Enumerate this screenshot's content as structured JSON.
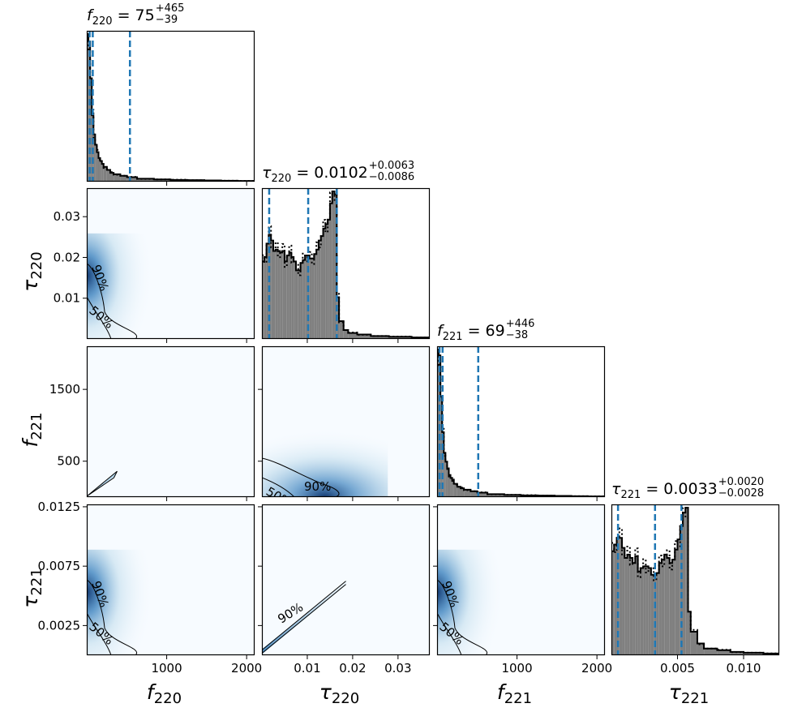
{
  "chart_data": {
    "type": "corner",
    "colors": {
      "quantile_line": "#1f77b4",
      "hist_fill": "#808080",
      "hist_edge": "#000000",
      "density_low": "#f7fbff",
      "density_high": "#08306b",
      "contour": "#000000"
    },
    "parameters": [
      {
        "key": "f220",
        "sym": "f",
        "sub": "220",
        "axis_range": [
          0,
          2100
        ],
        "ticks": [
          1000,
          2000
        ],
        "tick_labels": [
          "1000",
          "2000"
        ]
      },
      {
        "key": "tau220",
        "sym": "τ",
        "sub": "220",
        "axis_range": [
          0.0,
          0.037
        ],
        "ticks": [
          0.01,
          0.02,
          0.03
        ],
        "tick_labels": [
          "0.01",
          "0.02",
          "0.03"
        ]
      },
      {
        "key": "f221",
        "sym": "f",
        "sub": "221",
        "axis_range": [
          0,
          2100
        ],
        "ticks": [
          500,
          1500
        ],
        "tick_labels": [
          "500",
          "1500"
        ],
        "x_ticks": [
          1000,
          2000
        ],
        "x_tick_labels": [
          "1000",
          "2000"
        ]
      },
      {
        "key": "tau221",
        "sym": "τ",
        "sub": "221",
        "axis_range": [
          0.0,
          0.0127
        ],
        "ticks": [
          0.0025,
          0.0075,
          0.0125
        ],
        "tick_labels": [
          "0.0025",
          "0.0075",
          "0.0125"
        ],
        "x_ticks": [
          0.005,
          0.01
        ],
        "x_tick_labels": [
          "0.005",
          "0.010"
        ]
      }
    ],
    "titles": [
      {
        "prefix": "f",
        "sub": "220",
        "eq": " = 75",
        "sup": "+465",
        "lo": "−39"
      },
      {
        "prefix": "τ",
        "sub": "220",
        "eq": " = 0.0102",
        "sup": "+0.0063",
        "lo": "−0.0086"
      },
      {
        "prefix": "f",
        "sub": "221",
        "eq": " = 69",
        "sup": "+446",
        "lo": "−38"
      },
      {
        "prefix": "τ",
        "sub": "221",
        "eq": " = 0.0033",
        "sup": "+0.0020",
        "lo": "−0.0028"
      }
    ],
    "quantiles": [
      [
        36,
        75,
        540
      ],
      [
        0.0016,
        0.0102,
        0.0165
      ],
      [
        31,
        69,
        515
      ],
      [
        0.0005,
        0.0033,
        0.0053
      ]
    ],
    "histograms": [
      {
        "edges": [
          0,
          21,
          42,
          63,
          84,
          105,
          126,
          147,
          168,
          189,
          210,
          252,
          294,
          336,
          420,
          504,
          630,
          840,
          1050,
          1260,
          1470,
          1680,
          1890,
          2100
        ],
        "counts": [
          100,
          95,
          70,
          45,
          32,
          25,
          20,
          16,
          14,
          12,
          10,
          8,
          6,
          5,
          4,
          3,
          2,
          1.5,
          1.2,
          1,
          0.8,
          0.6,
          0.5
        ]
      },
      {
        "edges": [
          0.0,
          0.0005,
          0.001,
          0.0015,
          0.002,
          0.0025,
          0.003,
          0.0035,
          0.004,
          0.0045,
          0.005,
          0.0055,
          0.006,
          0.0065,
          0.007,
          0.0075,
          0.008,
          0.0085,
          0.009,
          0.0095,
          0.01,
          0.0105,
          0.011,
          0.0115,
          0.012,
          0.0125,
          0.013,
          0.0135,
          0.014,
          0.0145,
          0.015,
          0.0155,
          0.016,
          0.0165,
          0.017,
          0.018,
          0.019,
          0.021,
          0.024,
          0.028,
          0.033,
          0.037
        ],
        "counts": [
          52,
          55,
          64,
          70,
          66,
          59,
          60,
          59,
          58,
          59,
          52,
          56,
          58,
          55,
          52,
          46,
          46,
          51,
          53,
          56,
          56,
          54,
          54,
          57,
          60,
          66,
          69,
          74,
          77,
          80,
          91,
          99,
          97,
          28,
          12,
          6,
          4,
          3,
          2,
          1.5,
          1
        ]
      },
      {
        "edges": [
          0,
          21,
          42,
          63,
          84,
          105,
          126,
          147,
          168,
          189,
          210,
          252,
          294,
          336,
          420,
          504,
          630,
          840,
          1050,
          1260,
          1470,
          1680,
          1890,
          2100
        ],
        "counts": [
          100,
          96,
          68,
          44,
          30,
          24,
          19,
          15,
          13,
          11,
          9,
          7,
          6,
          5,
          4,
          3,
          2,
          1.5,
          1.2,
          1,
          0.8,
          0.6,
          0.5
        ]
      },
      {
        "edges": [
          0.0,
          0.0002,
          0.0004,
          0.0006,
          0.0008,
          0.001,
          0.0012,
          0.0014,
          0.0016,
          0.0018,
          0.002,
          0.0022,
          0.0024,
          0.0026,
          0.0028,
          0.003,
          0.0032,
          0.0034,
          0.0036,
          0.0038,
          0.004,
          0.0042,
          0.0044,
          0.0046,
          0.0048,
          0.005,
          0.0052,
          0.0054,
          0.0056,
          0.0058,
          0.006,
          0.0065,
          0.007,
          0.008,
          0.009,
          0.01,
          0.0115,
          0.0127
        ],
        "counts": [
          62,
          66,
          70,
          70,
          64,
          58,
          60,
          58,
          55,
          59,
          50,
          52,
          53,
          53,
          52,
          48,
          48,
          49,
          55,
          57,
          60,
          58,
          55,
          57,
          63,
          69,
          77,
          85,
          88,
          26,
          14,
          7,
          4,
          3,
          2,
          1.5,
          1
        ]
      }
    ],
    "contour_labels": [
      "50%",
      "90%"
    ]
  }
}
